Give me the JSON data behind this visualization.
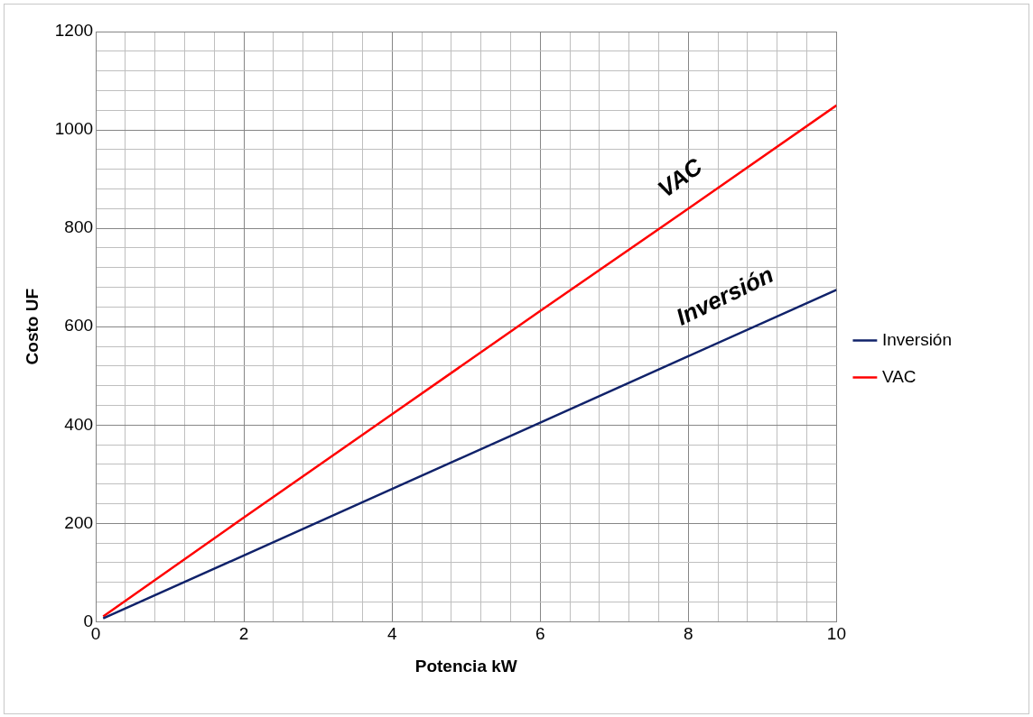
{
  "chart_data": {
    "type": "line",
    "xlabel": "Potencia kW",
    "ylabel": "Costo UF",
    "x": [
      0.1,
      2,
      4,
      6,
      8,
      10
    ],
    "series": [
      {
        "name": "Inversión",
        "color": "#10226a",
        "values": [
          7,
          135,
          270,
          405,
          540,
          675
        ]
      },
      {
        "name": "VAC",
        "color": "#ff0000",
        "values": [
          11,
          212,
          422,
          632,
          840,
          1050
        ]
      }
    ],
    "xlim": [
      0,
      10
    ],
    "xticks": [
      0,
      {
        "value": 0.4,
        "label": null
      },
      {
        "value": 0.8,
        "label": null
      },
      {
        "value": 1.2,
        "label": null
      },
      {
        "value": 1.6,
        "label": null
      },
      2,
      {
        "value": 2.4,
        "label": null
      },
      {
        "value": 2.8,
        "label": null
      },
      {
        "value": 3.2,
        "label": null
      },
      {
        "value": 3.6,
        "label": null
      },
      4,
      {
        "value": 4.4,
        "label": null
      },
      {
        "value": 4.8,
        "label": null
      },
      {
        "value": 5.2,
        "label": null
      },
      {
        "value": 5.6,
        "label": null
      },
      6,
      {
        "value": 6.4,
        "label": null
      },
      {
        "value": 6.8,
        "label": null
      },
      {
        "value": 7.2,
        "label": null
      },
      {
        "value": 7.6,
        "label": null
      },
      8,
      {
        "value": 8.4,
        "label": null
      },
      {
        "value": 8.8,
        "label": null
      },
      {
        "value": 9.2,
        "label": null
      },
      {
        "value": 9.6,
        "label": null
      },
      10
    ],
    "ylim": [
      0,
      1200
    ],
    "yticks": [
      0,
      {
        "value": 40,
        "label": null
      },
      {
        "value": 80,
        "label": null
      },
      {
        "value": 120,
        "label": null
      },
      {
        "value": 160,
        "label": null
      },
      200,
      {
        "value": 240,
        "label": null
      },
      {
        "value": 280,
        "label": null
      },
      {
        "value": 320,
        "label": null
      },
      {
        "value": 360,
        "label": null
      },
      400,
      {
        "value": 440,
        "label": null
      },
      {
        "value": 480,
        "label": null
      },
      {
        "value": 520,
        "label": null
      },
      {
        "value": 560,
        "label": null
      },
      600,
      {
        "value": 640,
        "label": null
      },
      {
        "value": 680,
        "label": null
      },
      {
        "value": 720,
        "label": null
      },
      {
        "value": 760,
        "label": null
      },
      800,
      {
        "value": 840,
        "label": null
      },
      {
        "value": 880,
        "label": null
      },
      {
        "value": 920,
        "label": null
      },
      {
        "value": 960,
        "label": null
      },
      1000,
      {
        "value": 1040,
        "label": null
      },
      {
        "value": 1080,
        "label": null
      },
      {
        "value": 1120,
        "label": null
      },
      {
        "value": 1160,
        "label": null
      },
      1200
    ],
    "grid": true,
    "legend": "right",
    "marker": "none",
    "line_style": "solid",
    "annotations": [
      "VAC",
      "Inversión"
    ]
  }
}
